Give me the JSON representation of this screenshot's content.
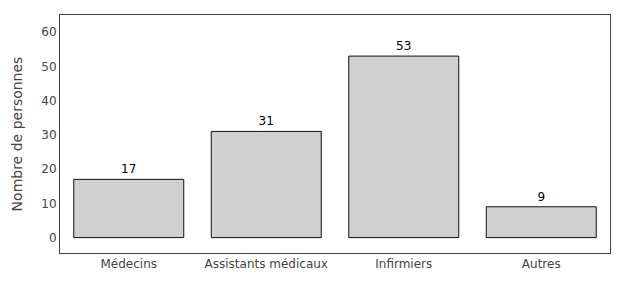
{
  "chart_data": {
    "type": "bar",
    "categories": [
      "Médecins",
      "Assistants médicaux",
      "Infirmiers",
      "Autres"
    ],
    "values": [
      17,
      31,
      53,
      9
    ],
    "ylabel": "Nombre de personnes",
    "color": "#d0d0d0",
    "ylim": [
      -4.5,
      65
    ],
    "yticks": [
      0,
      10,
      20,
      30,
      40,
      50,
      60
    ],
    "grid": false,
    "data_labels": true
  }
}
